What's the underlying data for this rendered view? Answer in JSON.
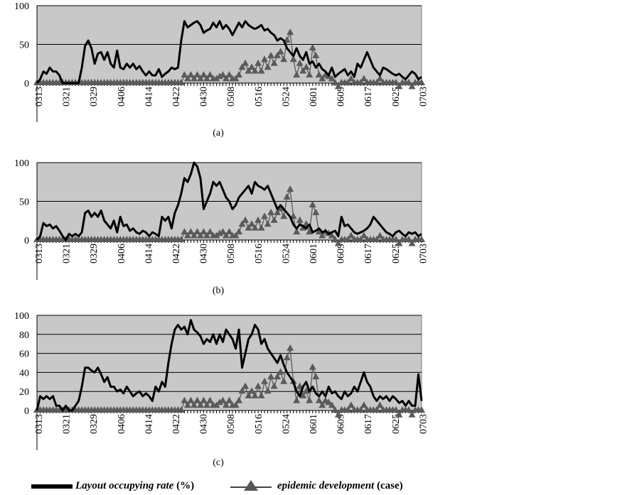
{
  "figure": {
    "legend": {
      "occupying_label": "Layout occupying rate",
      "occupying_unit": " (%)",
      "epidemic_label": "epidemic development",
      "epidemic_unit": " (case)"
    }
  },
  "chart_data": [
    {
      "type": "line",
      "panel_label": "(a)",
      "ylim": [
        0,
        100
      ],
      "yticks": [
        0,
        50,
        100
      ],
      "x_tick_labels": [
        "0313",
        "0321",
        "0329",
        "0406",
        "0414",
        "0422",
        "0430",
        "0508",
        "0516",
        "0524",
        "0601",
        "0609",
        "0617",
        "0625",
        "0703"
      ],
      "grid": true,
      "background": "#c8c8c8",
      "series": [
        {
          "name": "Layout occupying rate",
          "color": "#000000",
          "values": [
            0,
            5,
            15,
            12,
            20,
            15,
            15,
            10,
            0,
            0,
            0,
            0,
            0,
            0,
            20,
            48,
            55,
            45,
            25,
            38,
            40,
            30,
            40,
            25,
            20,
            42,
            20,
            18,
            25,
            20,
            25,
            18,
            22,
            15,
            10,
            15,
            10,
            10,
            18,
            8,
            12,
            15,
            20,
            18,
            20,
            55,
            80,
            72,
            75,
            78,
            80,
            75,
            65,
            68,
            70,
            78,
            72,
            80,
            70,
            75,
            70,
            62,
            70,
            78,
            72,
            80,
            75,
            72,
            70,
            72,
            75,
            68,
            70,
            65,
            62,
            55,
            58,
            55,
            45,
            40,
            35,
            45,
            35,
            30,
            40,
            25,
            28,
            20,
            25,
            18,
            15,
            10,
            20,
            8,
            12,
            15,
            18,
            10,
            15,
            8,
            25,
            20,
            30,
            40,
            30,
            20,
            15,
            10,
            20,
            18,
            15,
            12,
            10,
            12,
            8,
            5,
            10,
            15,
            12,
            5,
            8
          ]
        },
        {
          "name": "epidemic development",
          "color": "#5a5a5a",
          "values": [
            0,
            0,
            0,
            0,
            0,
            0,
            0,
            0,
            0,
            0,
            0,
            0,
            0,
            0,
            0,
            0,
            0,
            0,
            0,
            0,
            0,
            0,
            0,
            0,
            0,
            0,
            0,
            0,
            0,
            0,
            0,
            0,
            0,
            0,
            0,
            0,
            0,
            0,
            0,
            0,
            0,
            0,
            0,
            0,
            0,
            0,
            10,
            5,
            10,
            5,
            10,
            5,
            10,
            5,
            10,
            5,
            5,
            8,
            10,
            5,
            10,
            5,
            5,
            10,
            20,
            25,
            15,
            20,
            15,
            25,
            15,
            30,
            20,
            35,
            25,
            35,
            40,
            30,
            55,
            65,
            30,
            10,
            25,
            15,
            20,
            10,
            45,
            35,
            10,
            5,
            10,
            8,
            5,
            0,
            -5,
            0,
            0,
            0,
            5,
            0,
            0,
            0,
            5,
            0,
            0,
            0,
            0,
            5,
            0,
            0,
            0,
            0,
            0,
            -5,
            0,
            0,
            0,
            -5,
            0,
            0,
            0
          ]
        }
      ]
    },
    {
      "type": "line",
      "panel_label": "(b)",
      "ylim": [
        0,
        100
      ],
      "yticks": [
        0,
        50,
        100
      ],
      "x_tick_labels": [
        "0313",
        "0321",
        "0329",
        "0406",
        "0414",
        "0422",
        "0430",
        "0508",
        "0516",
        "0524",
        "0601",
        "0609",
        "0617",
        "0625",
        "0703"
      ],
      "grid": true,
      "background": "#c8c8c8",
      "series": [
        {
          "name": "Layout occupying rate",
          "color": "#000000",
          "values": [
            0,
            5,
            22,
            18,
            20,
            15,
            18,
            12,
            5,
            0,
            8,
            5,
            8,
            5,
            10,
            35,
            38,
            30,
            35,
            30,
            38,
            25,
            20,
            15,
            25,
            10,
            30,
            18,
            20,
            12,
            15,
            10,
            8,
            12,
            10,
            5,
            10,
            8,
            5,
            30,
            25,
            30,
            15,
            35,
            45,
            60,
            80,
            75,
            85,
            100,
            95,
            80,
            40,
            50,
            60,
            75,
            70,
            75,
            65,
            55,
            50,
            40,
            45,
            55,
            60,
            65,
            70,
            60,
            75,
            70,
            68,
            65,
            70,
            60,
            50,
            40,
            45,
            40,
            35,
            30,
            20,
            15,
            20,
            18,
            15,
            20,
            10,
            12,
            15,
            10,
            12,
            8,
            10,
            12,
            5,
            30,
            18,
            20,
            15,
            10,
            8,
            10,
            12,
            15,
            20,
            30,
            25,
            20,
            15,
            10,
            8,
            5,
            10,
            12,
            8,
            5,
            10,
            8,
            10,
            5,
            8
          ]
        },
        {
          "name": "epidemic development",
          "color": "#5a5a5a",
          "values": [
            0,
            0,
            0,
            0,
            0,
            0,
            0,
            0,
            0,
            0,
            0,
            0,
            0,
            0,
            0,
            0,
            0,
            0,
            0,
            0,
            0,
            0,
            0,
            0,
            0,
            0,
            0,
            0,
            0,
            0,
            0,
            0,
            0,
            0,
            0,
            0,
            0,
            0,
            0,
            0,
            0,
            0,
            0,
            0,
            0,
            0,
            10,
            5,
            10,
            5,
            10,
            5,
            10,
            5,
            10,
            5,
            5,
            8,
            10,
            5,
            10,
            5,
            5,
            10,
            20,
            25,
            15,
            20,
            15,
            25,
            15,
            30,
            20,
            35,
            25,
            35,
            40,
            30,
            55,
            65,
            30,
            10,
            25,
            15,
            20,
            10,
            45,
            35,
            10,
            5,
            10,
            8,
            5,
            0,
            -5,
            0,
            0,
            0,
            5,
            0,
            0,
            0,
            5,
            0,
            0,
            0,
            0,
            5,
            0,
            0,
            0,
            0,
            0,
            -5,
            0,
            0,
            0,
            -5,
            0,
            0,
            0
          ]
        }
      ]
    },
    {
      "type": "line",
      "panel_label": "(c)",
      "ylim": [
        0,
        100
      ],
      "yticks": [
        0,
        20,
        40,
        60,
        80,
        100
      ],
      "x_tick_labels": [
        "0313",
        "0321",
        "0329",
        "0406",
        "0414",
        "0422",
        "0430",
        "0508",
        "0516",
        "0524",
        "0601",
        "0609",
        "0617",
        "0625",
        "0703"
      ],
      "grid": true,
      "background": "#c8c8c8",
      "series": [
        {
          "name": "Layout occupying rate",
          "color": "#000000",
          "values": [
            0,
            15,
            12,
            15,
            12,
            15,
            5,
            5,
            0,
            5,
            0,
            0,
            5,
            10,
            25,
            45,
            45,
            42,
            40,
            45,
            38,
            30,
            35,
            25,
            25,
            20,
            22,
            18,
            25,
            20,
            15,
            18,
            20,
            15,
            18,
            15,
            10,
            25,
            20,
            30,
            25,
            50,
            70,
            85,
            90,
            85,
            88,
            80,
            95,
            85,
            82,
            78,
            70,
            75,
            72,
            80,
            70,
            80,
            72,
            85,
            80,
            75,
            65,
            85,
            45,
            60,
            75,
            80,
            90,
            85,
            70,
            75,
            65,
            60,
            55,
            50,
            58,
            48,
            40,
            35,
            30,
            20,
            15,
            25,
            30,
            20,
            25,
            18,
            15,
            20,
            15,
            25,
            18,
            20,
            15,
            12,
            20,
            15,
            18,
            25,
            20,
            30,
            40,
            30,
            25,
            15,
            10,
            15,
            12,
            15,
            10,
            15,
            12,
            8,
            10,
            5,
            10,
            5,
            5,
            38,
            10
          ]
        },
        {
          "name": "epidemic development",
          "color": "#5a5a5a",
          "values": [
            0,
            0,
            0,
            0,
            0,
            0,
            0,
            0,
            0,
            0,
            0,
            0,
            0,
            0,
            0,
            0,
            0,
            0,
            0,
            0,
            0,
            0,
            0,
            0,
            0,
            0,
            0,
            0,
            0,
            0,
            0,
            0,
            0,
            0,
            0,
            0,
            0,
            0,
            0,
            0,
            0,
            0,
            0,
            0,
            0,
            0,
            10,
            5,
            10,
            5,
            10,
            5,
            10,
            5,
            10,
            5,
            5,
            8,
            10,
            5,
            10,
            5,
            5,
            10,
            20,
            25,
            15,
            20,
            15,
            25,
            15,
            30,
            20,
            35,
            25,
            35,
            40,
            30,
            55,
            65,
            30,
            10,
            25,
            15,
            20,
            10,
            45,
            35,
            10,
            5,
            10,
            8,
            5,
            0,
            -5,
            0,
            0,
            0,
            5,
            0,
            0,
            0,
            5,
            0,
            0,
            0,
            0,
            5,
            0,
            0,
            0,
            0,
            0,
            -5,
            0,
            0,
            0,
            -5,
            0,
            0,
            0
          ]
        }
      ]
    }
  ]
}
